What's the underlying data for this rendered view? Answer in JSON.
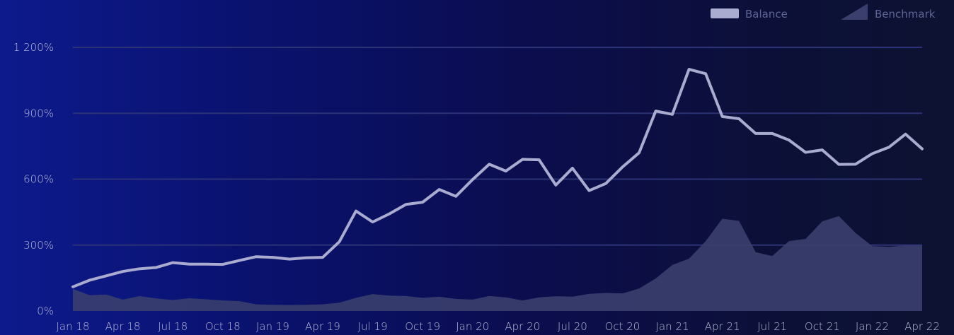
{
  "chart_data": {
    "type": "line",
    "title": "",
    "xlabel": "",
    "ylabel": "",
    "ylim": [
      0,
      1300
    ],
    "y_ticks": [
      0,
      300,
      600,
      900,
      1200
    ],
    "y_tick_labels": [
      "0%",
      "300%",
      "600%",
      "900%",
      "1 200%"
    ],
    "x_tick_labels": [
      "Jan 18",
      "Apr 18",
      "Jul 18",
      "Oct 18",
      "Jan 19",
      "Apr 19",
      "Jul 19",
      "Oct 19",
      "Jan 20",
      "Apr 20",
      "Jul 20",
      "Oct 20",
      "Jan 21",
      "Apr 21",
      "Jul 21",
      "Oct 21",
      "Jan 22",
      "Apr 22"
    ],
    "grid": true,
    "legend": {
      "position": "top-right"
    },
    "series": [
      {
        "name": "Balance",
        "type": "line",
        "color": "#a9abcf",
        "values": [
          110,
          140,
          160,
          180,
          192,
          198,
          220,
          213,
          213,
          212,
          230,
          247,
          244,
          236,
          242,
          244,
          315,
          455,
          405,
          442,
          485,
          495,
          553,
          522,
          598,
          668,
          637,
          690,
          688,
          573,
          650,
          548,
          580,
          655,
          720,
          910,
          895,
          1100,
          1080,
          885,
          875,
          808,
          808,
          778,
          722,
          733,
          667,
          668,
          716,
          745,
          805,
          738
        ]
      },
      {
        "name": "Benchmark",
        "type": "area",
        "color": "#3a3f6e",
        "values": [
          100,
          72,
          75,
          52,
          68,
          57,
          50,
          58,
          53,
          48,
          45,
          30,
          28,
          27,
          28,
          30,
          38,
          60,
          77,
          70,
          68,
          60,
          65,
          55,
          52,
          68,
          62,
          48,
          62,
          67,
          65,
          78,
          82,
          80,
          102,
          148,
          210,
          238,
          318,
          420,
          410,
          268,
          250,
          318,
          328,
          408,
          432,
          355,
          295,
          292,
          298,
          298
        ]
      }
    ]
  }
}
